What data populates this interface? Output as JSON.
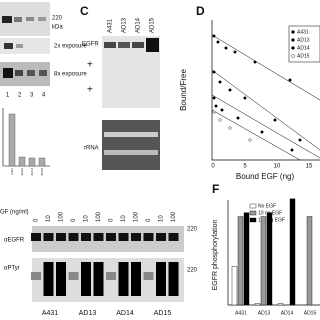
{
  "panel_a": {
    "marker": "220",
    "unit": "kDa",
    "exposures": [
      "2x exposure",
      "8x exposure"
    ],
    "lanes": [
      "1",
      "2",
      "3",
      "4"
    ],
    "bar_labels": [
      "A431",
      "AD13",
      "AD14",
      "AD15"
    ]
  },
  "panel_c": {
    "letter": "C",
    "lanes": [
      "A431",
      "AD13",
      "AD14",
      "AD15"
    ],
    "band_label": "EGFR",
    "symbols": [
      "+",
      "+"
    ],
    "loading_label": "rRNA"
  },
  "panel_d": {
    "letter": "D",
    "y_label": "Bound/Free",
    "x_label": "Bound EGF (ng)",
    "x_ticks": [
      "0",
      "5",
      "10",
      "15"
    ],
    "legend": [
      "A431",
      "AD13",
      "AD14",
      "AD15"
    ]
  },
  "panel_e": {
    "dose_label": "GF (ng/ml)",
    "doses": [
      "0",
      "10",
      "100",
      "0",
      "10",
      "100",
      "0",
      "10",
      "100",
      "0",
      "10",
      "100"
    ],
    "blots": [
      {
        "label": "αEGFR",
        "marker": "220"
      },
      {
        "label": "αPTyr",
        "marker": "220"
      }
    ],
    "cells": [
      "A431",
      "AD13",
      "AD14",
      "AD15"
    ]
  },
  "panel_f": {
    "letter": "F",
    "y_label": "EGFR phosphorylation",
    "legend": [
      "No EGF",
      "10 ng EGF",
      "100 ng EGF"
    ],
    "cells": [
      "A431",
      "AD13",
      "AD14",
      "AD15"
    ]
  }
}
